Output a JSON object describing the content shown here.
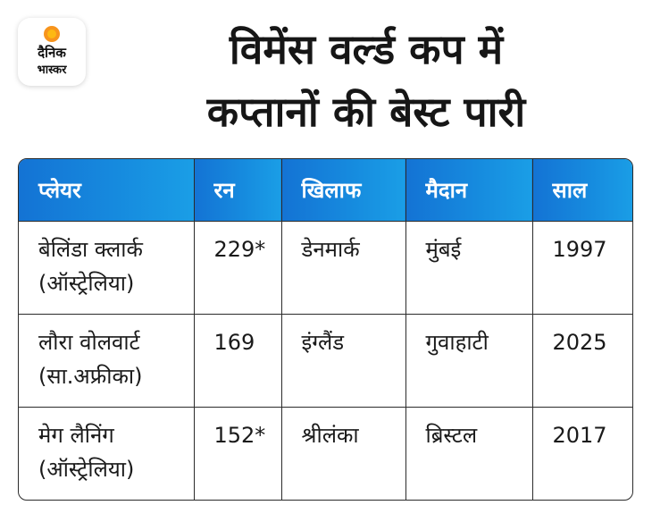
{
  "logo": {
    "line1": "दैनिक",
    "line2": "भास्कर",
    "accent_color": "#f7941d"
  },
  "title": {
    "line1": "विमेंस वर्ल्ड कप में",
    "line2": "कप्तानों की बेस्ट पारी"
  },
  "table": {
    "header_color": "#168ade",
    "columns": [
      "प्लेयर",
      "रन",
      "खिलाफ",
      "मैदान",
      "साल"
    ],
    "rows": [
      {
        "player": "बेलिंडा क्लार्क",
        "country": "(ऑस्ट्रेलिया)",
        "runs": "229*",
        "against": "डेनमार्क",
        "venue": "मुंबई",
        "year": "1997"
      },
      {
        "player": "लौरा वोलवार्ट",
        "country": "(सा.अफ्रीका)",
        "runs": "169",
        "against": "इंग्लैंड",
        "venue": "गुवाहाटी",
        "year": "2025"
      },
      {
        "player": "मेग लैनिंग",
        "country": "(ऑस्ट्रेलिया)",
        "runs": "152*",
        "against": "श्रीलंका",
        "venue": "ब्रिस्टल",
        "year": "2017"
      }
    ]
  }
}
